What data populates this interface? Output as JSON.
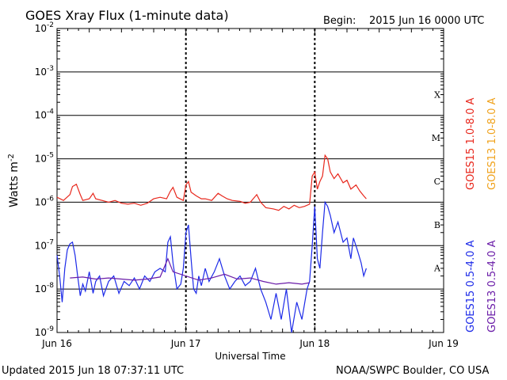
{
  "header": {
    "title": "GOES Xray Flux (1-minute data)",
    "begin_label": "Begin:",
    "begin_value": "2015 Jun 16 0000 UTC"
  },
  "footer": {
    "updated": "Updated 2015 Jun 18 07:37:11 UTC",
    "source": "NOAA/SWPC Boulder, CO USA"
  },
  "colors": {
    "goes15_long": "#e8271c",
    "goes13_long": "#f0a21c",
    "goes15_short": "#1c2ae8",
    "goes13_short": "#6a1ca8"
  },
  "chart_data": {
    "type": "line",
    "title": "GOES Xray Flux (1-minute data)",
    "xlabel": "Universal Time",
    "ylabel": "Watts m",
    "ylabel_superscript": "-2",
    "yscale": "log",
    "ylim": [
      1e-09,
      0.01
    ],
    "y_tick_mantissa": "10",
    "y_ticks": [
      {
        "value": 0.01,
        "exp": "-2"
      },
      {
        "value": 0.001,
        "exp": "-3"
      },
      {
        "value": 0.0001,
        "exp": "-4"
      },
      {
        "value": 1e-05,
        "exp": "-5"
      },
      {
        "value": 1e-06,
        "exp": "-6"
      },
      {
        "value": 1e-07,
        "exp": "-7"
      },
      {
        "value": 1e-08,
        "exp": "-8"
      },
      {
        "value": 1e-09,
        "exp": "-9"
      }
    ],
    "x_range_days": [
      0,
      3
    ],
    "x_ticks": [
      {
        "day": 0,
        "label": "Jun 16"
      },
      {
        "day": 1,
        "label": "Jun 17"
      },
      {
        "day": 2,
        "label": "Jun 18"
      },
      {
        "day": 3,
        "label": "Jun 19"
      }
    ],
    "flare_classes": [
      {
        "label": "X",
        "value": 0.0001
      },
      {
        "label": "M",
        "value": 1e-05
      },
      {
        "label": "C",
        "value": 1e-06
      },
      {
        "label": "B",
        "value": 1e-07
      },
      {
        "label": "A",
        "value": 1e-08
      }
    ],
    "series": [
      {
        "name": "GOES15 1.0-8.0 A",
        "color": "#e8271c",
        "points": [
          [
            0.0,
            1.3e-06
          ],
          [
            0.05,
            1.1e-06
          ],
          [
            0.1,
            1.5e-06
          ],
          [
            0.12,
            2.3e-06
          ],
          [
            0.15,
            2.6e-06
          ],
          [
            0.18,
            1.5e-06
          ],
          [
            0.2,
            1.1e-06
          ],
          [
            0.25,
            1.2e-06
          ],
          [
            0.28,
            1.6e-06
          ],
          [
            0.3,
            1.2e-06
          ],
          [
            0.35,
            1.1e-06
          ],
          [
            0.4,
            1e-06
          ],
          [
            0.45,
            1.1e-06
          ],
          [
            0.5,
            9.5e-07
          ],
          [
            0.55,
            9e-07
          ],
          [
            0.6,
            9.5e-07
          ],
          [
            0.65,
            8.5e-07
          ],
          [
            0.7,
            9.5e-07
          ],
          [
            0.75,
            1.2e-06
          ],
          [
            0.8,
            1.3e-06
          ],
          [
            0.85,
            1.2e-06
          ],
          [
            0.88,
            1.8e-06
          ],
          [
            0.9,
            2.2e-06
          ],
          [
            0.93,
            1.3e-06
          ],
          [
            0.98,
            1.1e-06
          ],
          [
            1.0,
            2.5e-06
          ],
          [
            1.02,
            3e-06
          ],
          [
            1.04,
            1.7e-06
          ],
          [
            1.08,
            1.4e-06
          ],
          [
            1.12,
            1.2e-06
          ],
          [
            1.15,
            1.2e-06
          ],
          [
            1.2,
            1.1e-06
          ],
          [
            1.25,
            1.6e-06
          ],
          [
            1.28,
            1.4e-06
          ],
          [
            1.32,
            1.2e-06
          ],
          [
            1.36,
            1.1e-06
          ],
          [
            1.42,
            1.05e-06
          ],
          [
            1.46,
            9.5e-07
          ],
          [
            1.5,
            1e-06
          ],
          [
            1.55,
            1.5e-06
          ],
          [
            1.58,
            1e-06
          ],
          [
            1.62,
            7.5e-07
          ],
          [
            1.68,
            7e-07
          ],
          [
            1.72,
            6.5e-07
          ],
          [
            1.76,
            8e-07
          ],
          [
            1.8,
            7e-07
          ],
          [
            1.84,
            8.5e-07
          ],
          [
            1.88,
            7.5e-07
          ],
          [
            1.92,
            8e-07
          ],
          [
            1.96,
            9e-07
          ],
          [
            1.98,
            4e-06
          ],
          [
            2.0,
            5e-06
          ],
          [
            2.02,
            2e-06
          ],
          [
            2.04,
            3e-06
          ],
          [
            2.06,
            4e-06
          ],
          [
            2.08,
            1.2e-05
          ],
          [
            2.1,
            1e-05
          ],
          [
            2.12,
            5e-06
          ],
          [
            2.15,
            3.5e-06
          ],
          [
            2.18,
            4.5e-06
          ],
          [
            2.22,
            2.8e-06
          ],
          [
            2.25,
            3.2e-06
          ],
          [
            2.28,
            2e-06
          ],
          [
            2.32,
            2.5e-06
          ],
          [
            2.35,
            1.8e-06
          ],
          [
            2.38,
            1.4e-06
          ],
          [
            2.4,
            1.2e-06
          ]
        ]
      },
      {
        "name": "GOES13 1.0-8.0 A",
        "color": "#f0a21c",
        "points": []
      },
      {
        "name": "GOES15 0.5-4.0 A",
        "color": "#1c2ae8",
        "points": [
          [
            0.0,
            6e-08
          ],
          [
            0.02,
            2e-08
          ],
          [
            0.04,
            5e-09
          ],
          [
            0.06,
            3e-08
          ],
          [
            0.08,
            8e-08
          ],
          [
            0.1,
            1.1e-07
          ],
          [
            0.12,
            1.2e-07
          ],
          [
            0.14,
            6e-08
          ],
          [
            0.16,
            2e-08
          ],
          [
            0.18,
            7e-09
          ],
          [
            0.2,
            1.3e-08
          ],
          [
            0.22,
            9e-09
          ],
          [
            0.25,
            2.5e-08
          ],
          [
            0.28,
            8e-09
          ],
          [
            0.3,
            1.5e-08
          ],
          [
            0.33,
            2e-08
          ],
          [
            0.36,
            7e-09
          ],
          [
            0.4,
            1.5e-08
          ],
          [
            0.44,
            2e-08
          ],
          [
            0.48,
            8e-09
          ],
          [
            0.52,
            1.5e-08
          ],
          [
            0.56,
            1.2e-08
          ],
          [
            0.6,
            1.8e-08
          ],
          [
            0.64,
            1e-08
          ],
          [
            0.68,
            2e-08
          ],
          [
            0.72,
            1.5e-08
          ],
          [
            0.76,
            2.5e-08
          ],
          [
            0.8,
            3e-08
          ],
          [
            0.84,
            2.5e-08
          ],
          [
            0.86,
            1.2e-07
          ],
          [
            0.88,
            1.6e-07
          ],
          [
            0.9,
            4e-08
          ],
          [
            0.93,
            1e-08
          ],
          [
            0.96,
            1.3e-08
          ],
          [
            0.98,
            3e-08
          ],
          [
            1.0,
            2e-07
          ],
          [
            1.02,
            3e-07
          ],
          [
            1.04,
            5e-08
          ],
          [
            1.06,
            1e-08
          ],
          [
            1.08,
            8e-09
          ],
          [
            1.1,
            2e-08
          ],
          [
            1.12,
            1.2e-08
          ],
          [
            1.15,
            3e-08
          ],
          [
            1.18,
            1.5e-08
          ],
          [
            1.22,
            2.5e-08
          ],
          [
            1.26,
            5e-08
          ],
          [
            1.3,
            2e-08
          ],
          [
            1.34,
            1e-08
          ],
          [
            1.38,
            1.5e-08
          ],
          [
            1.42,
            2e-08
          ],
          [
            1.46,
            1.2e-08
          ],
          [
            1.5,
            1.5e-08
          ],
          [
            1.54,
            3e-08
          ],
          [
            1.58,
            1e-08
          ],
          [
            1.62,
            5e-09
          ],
          [
            1.66,
            2e-09
          ],
          [
            1.7,
            8e-09
          ],
          [
            1.74,
            2e-09
          ],
          [
            1.78,
            1e-08
          ],
          [
            1.82,
            1e-09
          ],
          [
            1.86,
            5e-09
          ],
          [
            1.9,
            2e-09
          ],
          [
            1.94,
            1e-08
          ],
          [
            1.96,
            1.5e-08
          ],
          [
            1.98,
            1e-07
          ],
          [
            2.0,
            8e-07
          ],
          [
            2.02,
            5e-08
          ],
          [
            2.04,
            3e-08
          ],
          [
            2.06,
            2e-07
          ],
          [
            2.08,
            1e-06
          ],
          [
            2.1,
            8e-07
          ],
          [
            2.12,
            5e-07
          ],
          [
            2.15,
            2e-07
          ],
          [
            2.18,
            3.5e-07
          ],
          [
            2.22,
            1.2e-07
          ],
          [
            2.25,
            1.5e-07
          ],
          [
            2.28,
            5e-08
          ],
          [
            2.3,
            1.5e-07
          ],
          [
            2.33,
            8e-08
          ],
          [
            2.36,
            4e-08
          ],
          [
            2.38,
            2e-08
          ],
          [
            2.4,
            3e-08
          ]
        ]
      },
      {
        "name": "GOES13 0.5-4.0 A",
        "color": "#6a1ca8",
        "points": [
          [
            0.1,
            1.8e-08
          ],
          [
            0.2,
            1.9e-08
          ],
          [
            0.3,
            1.7e-08
          ],
          [
            0.4,
            1.8e-08
          ],
          [
            0.5,
            1.7e-08
          ],
          [
            0.6,
            1.6e-08
          ],
          [
            0.7,
            1.7e-08
          ],
          [
            0.8,
            1.9e-08
          ],
          [
            0.86,
            5e-08
          ],
          [
            0.9,
            2.5e-08
          ],
          [
            1.1,
            1.6e-08
          ],
          [
            1.2,
            1.8e-08
          ],
          [
            1.3,
            2.2e-08
          ],
          [
            1.4,
            1.7e-08
          ],
          [
            1.5,
            1.8e-08
          ],
          [
            1.6,
            1.5e-08
          ],
          [
            1.7,
            1.3e-08
          ],
          [
            1.8,
            1.4e-08
          ],
          [
            1.9,
            1.3e-08
          ],
          [
            1.96,
            1.4e-08
          ]
        ]
      }
    ]
  }
}
